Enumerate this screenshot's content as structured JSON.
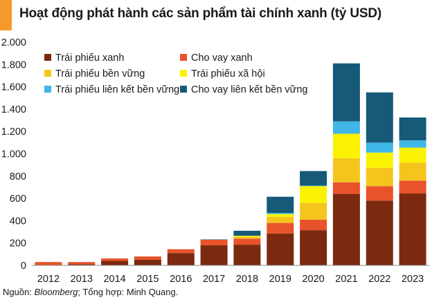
{
  "header": {
    "title": "Hoạt động phát hành các sản phẩm tài chính xanh (tỷ USD)",
    "accent_color": "#F39A2B"
  },
  "footer": {
    "source_prefix": "Nguồn: ",
    "source_name": "Bloomberg",
    "source_rest": "; Tổng hợp: Minh Quang."
  },
  "chart_data": {
    "type": "bar",
    "stacked": true,
    "title": "Hoạt động phát hành các sản phẩm tài chính xanh (tỷ USD)",
    "xlabel": "",
    "ylabel": "",
    "categories": [
      "2012",
      "2013",
      "2014",
      "2015",
      "2016",
      "2017",
      "2018",
      "2019",
      "2020",
      "2021",
      "2022",
      "2023"
    ],
    "ylim": [
      0,
      2000
    ],
    "yticks": [
      0,
      200,
      400,
      600,
      800,
      1000,
      1200,
      1400,
      1600,
      1800,
      2000
    ],
    "ytick_labels": [
      "0",
      "200",
      "400",
      "600",
      "800",
      "1.000",
      "1.200",
      "1.400",
      "1.600",
      "1.800",
      "2.000"
    ],
    "grid": false,
    "legend_position": "top-left",
    "series": [
      {
        "name": "Trái phiếu xanh",
        "color": "#7B2A10",
        "values": [
          3,
          10,
          40,
          50,
          110,
          180,
          185,
          285,
          315,
          640,
          580,
          645
        ]
      },
      {
        "name": "Cho vay xanh",
        "color": "#E8532A",
        "values": [
          27,
          20,
          22,
          30,
          35,
          50,
          55,
          95,
          95,
          105,
          130,
          115
        ]
      },
      {
        "name": "Trái phiếu bền vững",
        "color": "#F5C51E",
        "values": [
          0,
          0,
          0,
          0,
          0,
          0,
          15,
          55,
          150,
          215,
          165,
          160
        ]
      },
      {
        "name": "Trái phiếu xã hội",
        "color": "#FAF200",
        "values": [
          0,
          0,
          0,
          0,
          0,
          0,
          10,
          25,
          150,
          220,
          135,
          135
        ]
      },
      {
        "name": "Trái phiếu liên kết bền vững",
        "color": "#3FB6E6",
        "values": [
          0,
          0,
          0,
          0,
          0,
          0,
          0,
          10,
          5,
          110,
          90,
          65
        ]
      },
      {
        "name": "Cho vay liên kết bền vững",
        "color": "#165A78",
        "values": [
          0,
          0,
          0,
          0,
          0,
          3,
          45,
          145,
          130,
          520,
          450,
          205
        ]
      }
    ]
  }
}
